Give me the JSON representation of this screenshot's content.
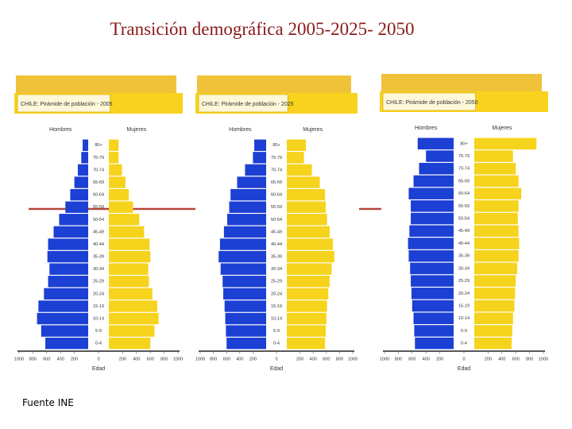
{
  "title": "Transición demográfica 2005-2025- 2050",
  "source": "Fuente INE",
  "chart_data": [
    {
      "type": "pyramid",
      "title": "CHILE: Pirámide de población - 2005",
      "y_label": "Edad",
      "categories": [
        "0-4",
        "5-9",
        "10-14",
        "15-19",
        "20-24",
        "25-29",
        "30-34",
        "35-39",
        "40-44",
        "45-49",
        "50-54",
        "55-59",
        "60-64",
        "65-69",
        "70-74",
        "75-79",
        "80+"
      ],
      "series": [
        {
          "name": "Hombres",
          "color": "#1c3fd4",
          "values": [
            620,
            680,
            740,
            720,
            640,
            580,
            560,
            590,
            580,
            500,
            420,
            330,
            260,
            200,
            150,
            100,
            80
          ]
        },
        {
          "name": "Mujeres",
          "color": "#f6d31c",
          "values": [
            600,
            660,
            720,
            700,
            630,
            580,
            570,
            600,
            590,
            510,
            440,
            350,
            290,
            240,
            190,
            140,
            140
          ]
        }
      ],
      "xlim": [
        -1000,
        1000
      ],
      "xticks": [
        {
          "value": -1000,
          "label": "1000"
        },
        {
          "value": -800,
          "label": "800"
        },
        {
          "value": -600,
          "label": "600"
        },
        {
          "value": -400,
          "label": "400"
        },
        {
          "value": -200,
          "label": "200"
        },
        0,
        200,
        400,
        600,
        800,
        1000
      ]
    },
    {
      "type": "pyramid",
      "title": "CHILE: Pirámide de población - 2025",
      "y_label": "Edad",
      "categories": [
        "0-4",
        "5-9",
        "10-14",
        "15-19",
        "20-24",
        "25-29",
        "30-34",
        "35-39",
        "40-44",
        "45-49",
        "50-54",
        "55-59",
        "60-64",
        "65-69",
        "70-74",
        "75-79",
        "80+"
      ],
      "series": [
        {
          "name": "Hombres",
          "color": "#1c3fd4",
          "values": [
            600,
            610,
            620,
            630,
            650,
            660,
            690,
            720,
            700,
            640,
            590,
            560,
            540,
            440,
            320,
            200,
            180
          ]
        },
        {
          "name": "Mujeres",
          "color": "#f6d31c",
          "values": [
            580,
            590,
            600,
            610,
            630,
            650,
            680,
            720,
            700,
            650,
            610,
            590,
            580,
            500,
            380,
            260,
            290
          ]
        }
      ],
      "xlim": [
        -1000,
        1000
      ],
      "xticks": [
        {
          "value": -1000,
          "label": "1000"
        },
        {
          "value": -800,
          "label": "800"
        },
        {
          "value": -600,
          "label": "600"
        },
        {
          "value": -400,
          "label": "400"
        },
        {
          "value": -200,
          "label": "200"
        },
        0,
        200,
        400,
        600,
        800,
        1000
      ]
    },
    {
      "type": "pyramid",
      "title": "CHILE: Pirámide de población - 2050",
      "y_label": "Edad",
      "categories": [
        "0-4",
        "5-9",
        "10-14",
        "15-19",
        "20-24",
        "25-29",
        "30-34",
        "35-39",
        "40-44",
        "45-49",
        "50-54",
        "55-59",
        "60-64",
        "65-69",
        "70-74",
        "75-79",
        "80+"
      ],
      "series": [
        {
          "name": "Hombres",
          "color": "#1c3fd4",
          "values": [
            560,
            570,
            580,
            600,
            610,
            620,
            630,
            650,
            660,
            640,
            620,
            620,
            650,
            580,
            500,
            400,
            520
          ]
        },
        {
          "name": "Mujeres",
          "color": "#f6d31c",
          "values": [
            540,
            550,
            560,
            580,
            590,
            600,
            620,
            640,
            650,
            640,
            630,
            640,
            680,
            640,
            600,
            560,
            900
          ]
        }
      ],
      "xlim": [
        -1000,
        1000
      ],
      "xticks": [
        {
          "value": -1000,
          "label": "1000"
        },
        {
          "value": -800,
          "label": "800"
        },
        {
          "value": -600,
          "label": "600"
        },
        {
          "value": -400,
          "label": "400"
        },
        {
          "value": -200,
          "label": "200"
        },
        0,
        200,
        400,
        600,
        800,
        1000
      ]
    }
  ]
}
